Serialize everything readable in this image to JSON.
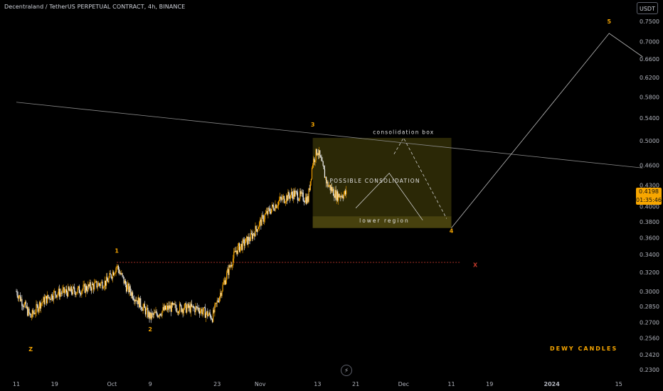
{
  "header": {
    "symbol_title": "Decentraland / TetherUS PERPETUAL CONTRACT, 4h, BINANCE"
  },
  "currency_button": {
    "label": "USDT"
  },
  "last_price": {
    "price": "0.4198",
    "countdown": "01:35:46"
  },
  "watermark": "DEWY CANDLES",
  "icons": {
    "flash": "lightning-icon"
  },
  "colors": {
    "background": "#000000",
    "candle": "#f7a600",
    "candle_alt": "#f5f5f5",
    "box_fill": "#3a3508",
    "wave_label": "#f7a600",
    "support_line": "#c0392b"
  },
  "chart_data": {
    "type": "candlestick",
    "y_scale": "log",
    "ylim": [
      0.225,
      0.77
    ],
    "y_ticks": [
      "0.7500",
      "0.7000",
      "0.6600",
      "0.6200",
      "0.5800",
      "0.5400",
      "0.5000",
      "0.4600",
      "0.4300",
      "0.4000",
      "0.3800",
      "0.3600",
      "0.3400",
      "0.3200",
      "0.3000",
      "0.2850",
      "0.2700",
      "0.2560",
      "0.2420",
      "0.2300"
    ],
    "x_ticks": [
      "11",
      "19",
      "Oct",
      "9",
      "23",
      "Nov",
      "13",
      "21",
      "Dec",
      "11",
      "19",
      "2024",
      "15"
    ],
    "price_path": [
      [
        "Sep 11",
        0.3
      ],
      [
        "Sep 14",
        0.275
      ],
      [
        "Sep 16",
        0.288
      ],
      [
        "Sep 19",
        0.298
      ],
      [
        "Sep 24",
        0.301
      ],
      [
        "Sep 30",
        0.31
      ],
      [
        "Oct 2",
        0.327
      ],
      [
        "Oct 4",
        0.305
      ],
      [
        "Oct 9",
        0.275
      ],
      [
        "Oct 13",
        0.284
      ],
      [
        "Oct 19",
        0.283
      ],
      [
        "Oct 22",
        0.275
      ],
      [
        "Oct 24",
        0.303
      ],
      [
        "Oct 27",
        0.345
      ],
      [
        "Oct 30",
        0.36
      ],
      [
        "Nov 2",
        0.388
      ],
      [
        "Nov 5",
        0.408
      ],
      [
        "Nov 8",
        0.418
      ],
      [
        "Nov 11",
        0.41
      ],
      [
        "Nov 12",
        0.465
      ],
      [
        "Nov 13",
        0.485
      ],
      [
        "Nov 15",
        0.432
      ],
      [
        "Nov 17",
        0.415
      ],
      [
        "Nov 19",
        0.418
      ]
    ],
    "wave_labels": [
      {
        "label": "Z",
        "date": "Sep 14",
        "price": 0.245
      },
      {
        "label": "1",
        "date": "Oct 2",
        "price": 0.342
      },
      {
        "label": "2",
        "date": "Oct 9",
        "price": 0.262
      },
      {
        "label": "3",
        "date": "Nov 12",
        "price": 0.525
      },
      {
        "label": "4",
        "date": "Dec 11",
        "price": 0.366
      },
      {
        "label": "5",
        "date": "Jan 13",
        "price": 0.745
      },
      {
        "label": "X",
        "date": "Dec 16",
        "price": 0.326
      }
    ],
    "projection_path": [
      {
        "date": "Dec 11",
        "price": 0.372
      },
      {
        "date": "Jan 13",
        "price": 0.72
      },
      {
        "date": "Jan 20",
        "price": 0.665
      }
    ],
    "dashed_path": [
      {
        "date": "Nov 29",
        "price": 0.478
      },
      {
        "date": "Dec 1",
        "price": 0.505
      },
      {
        "date": "Dec 10",
        "price": 0.384
      }
    ],
    "solid_path": [
      {
        "date": "Nov 21",
        "price": 0.398
      },
      {
        "date": "Nov 28",
        "price": 0.448
      },
      {
        "date": "Dec 5",
        "price": 0.382
      }
    ],
    "trendline": [
      {
        "date": "Sep 11",
        "price": 0.57
      },
      {
        "date": "Jan 20",
        "price": 0.456
      }
    ],
    "support_line": {
      "price": 0.331,
      "from": "Oct 2",
      "to": "Dec 13"
    },
    "consolidation_box": {
      "from": "Nov 12",
      "to": "Dec 11",
      "top": 0.505,
      "bottom": 0.372
    },
    "lower_region": {
      "from": "Nov 12",
      "to": "Dec 11",
      "top": 0.387,
      "bottom": 0.372
    },
    "annotations": [
      {
        "text": "consolidation box",
        "date": "Dec 1",
        "price": 0.512
      },
      {
        "text": "POSSIBLE CONSOLIDATION",
        "date": "Nov 25",
        "price": 0.434
      },
      {
        "text": "lower region",
        "date": "Nov 27",
        "price": 0.379
      }
    ]
  }
}
